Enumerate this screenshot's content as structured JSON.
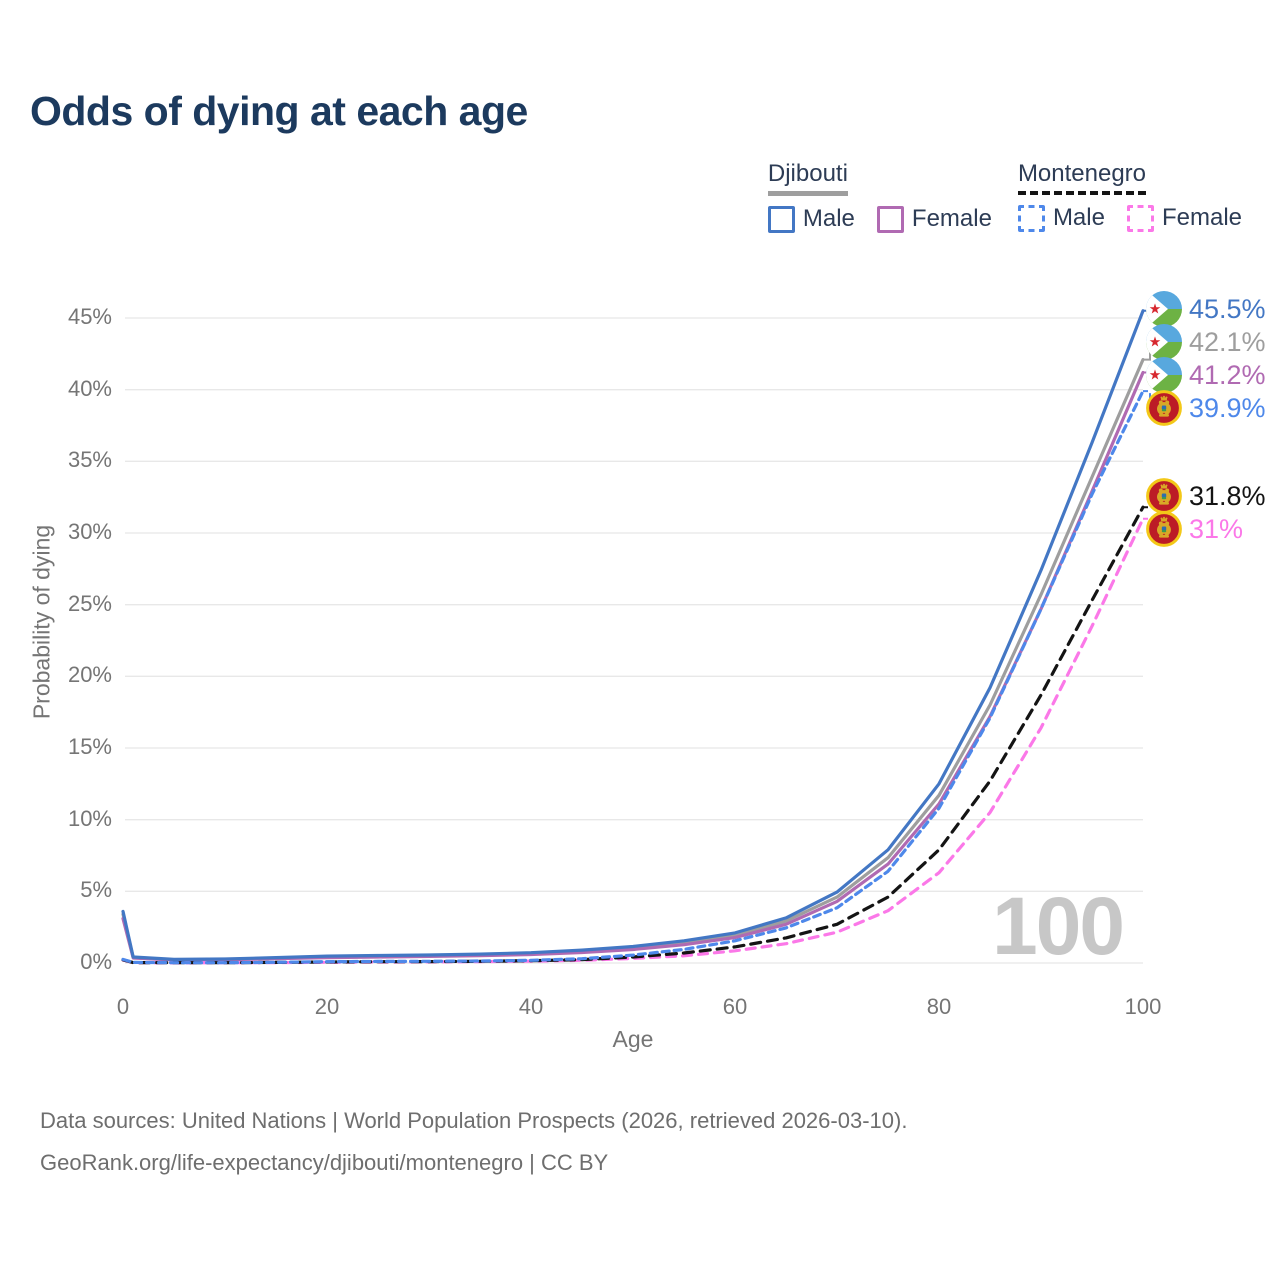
{
  "title": "Odds of dying at each age",
  "legend": {
    "groups": [
      {
        "label": "Djibouti",
        "line_style": "solid",
        "underline_color": "#9e9e9e",
        "items": [
          {
            "label": "Male",
            "color": "#4377c4",
            "dashed": false
          },
          {
            "label": "Female",
            "color": "#b06ab2",
            "dashed": false
          }
        ]
      },
      {
        "label": "Montenegro",
        "line_style": "dashed",
        "underline_color": "#141414",
        "items": [
          {
            "label": "Male",
            "color": "#4e88ea",
            "dashed": true
          },
          {
            "label": "Female",
            "color": "#fb78e8",
            "dashed": true
          }
        ]
      }
    ]
  },
  "chart_data": {
    "type": "line",
    "title": "Odds of dying at each age",
    "xlabel": "Age",
    "ylabel": "Probability of dying",
    "xlim": [
      0,
      100
    ],
    "ylim_pct": [
      0,
      47
    ],
    "grid": "horizontal",
    "x_ticks": [
      0,
      20,
      40,
      60,
      80,
      100
    ],
    "y_ticks_pct": [
      0,
      5,
      10,
      15,
      20,
      25,
      30,
      35,
      40,
      45
    ],
    "y_tick_suffix": "%",
    "legend_position": "top-right",
    "watermark_age_label": "100",
    "ages": [
      0,
      1,
      5,
      10,
      15,
      20,
      25,
      30,
      35,
      40,
      45,
      50,
      55,
      60,
      65,
      70,
      75,
      80,
      85,
      90,
      95,
      100
    ],
    "series": [
      {
        "name": "Djibouti Male",
        "country": "Djibouti",
        "sex": "Male",
        "color": "#4377c4",
        "dash": null,
        "flag": "djibouti",
        "end_label": "45.5%",
        "values_pct": [
          3.6,
          0.42,
          0.25,
          0.28,
          0.38,
          0.48,
          0.52,
          0.56,
          0.62,
          0.72,
          0.9,
          1.15,
          1.55,
          2.1,
          3.15,
          4.95,
          7.9,
          12.5,
          19.2,
          27.4,
          36.3,
          45.5
        ]
      },
      {
        "name": "Djibouti Both sexes",
        "country": "Djibouti",
        "sex": "Both",
        "color": "#9e9e9e",
        "dash": null,
        "flag": "djibouti",
        "end_label": "42.1%",
        "values_pct": [
          3.4,
          0.38,
          0.23,
          0.25,
          0.34,
          0.43,
          0.47,
          0.51,
          0.56,
          0.65,
          0.81,
          1.04,
          1.41,
          1.93,
          2.92,
          4.6,
          7.35,
          11.7,
          18.0,
          25.7,
          33.9,
          42.1
        ]
      },
      {
        "name": "Djibouti Female",
        "country": "Djibouti",
        "sex": "Female",
        "color": "#b06ab2",
        "dash": null,
        "flag": "djibouti",
        "end_label": "41.2%",
        "values_pct": [
          3.1,
          0.35,
          0.21,
          0.23,
          0.3,
          0.38,
          0.42,
          0.46,
          0.51,
          0.59,
          0.73,
          0.94,
          1.28,
          1.77,
          2.7,
          4.3,
          6.9,
          11.1,
          17.2,
          24.7,
          32.9,
          41.2
        ]
      },
      {
        "name": "Montenegro Male",
        "country": "Montenegro",
        "sex": "Male",
        "color": "#4e88ea",
        "dash": [
          7,
          5
        ],
        "flag": "montenegro",
        "end_label": "39.9%",
        "values_pct": [
          0.25,
          0.04,
          0.02,
          0.02,
          0.05,
          0.09,
          0.11,
          0.12,
          0.14,
          0.19,
          0.3,
          0.55,
          0.95,
          1.55,
          2.45,
          3.85,
          6.4,
          10.8,
          17.1,
          24.7,
          32.7,
          39.9
        ]
      },
      {
        "name": "Montenegro Both sexes",
        "country": "Montenegro",
        "sex": "Both",
        "color": "#141414",
        "dash": [
          10,
          7
        ],
        "flag": "montenegro",
        "end_label": "31.8%",
        "values_pct": [
          0.22,
          0.03,
          0.02,
          0.02,
          0.04,
          0.07,
          0.09,
          0.1,
          0.12,
          0.16,
          0.24,
          0.42,
          0.7,
          1.12,
          1.75,
          2.7,
          4.6,
          7.9,
          12.7,
          18.7,
          25.3,
          31.8
        ]
      },
      {
        "name": "Montenegro Female",
        "country": "Montenegro",
        "sex": "Female",
        "color": "#fb78e8",
        "dash": [
          9,
          7
        ],
        "flag": "montenegro",
        "end_label": "31%",
        "values_pct": [
          0.2,
          0.03,
          0.01,
          0.02,
          0.03,
          0.05,
          0.07,
          0.08,
          0.1,
          0.13,
          0.19,
          0.32,
          0.5,
          0.85,
          1.35,
          2.15,
          3.65,
          6.3,
          10.5,
          16.4,
          23.5,
          31.0
        ]
      }
    ],
    "flag_colors": {
      "djibouti": {
        "top": "#58a8de",
        "bottom": "#6db244",
        "triangle": "#ffffff",
        "star": "#d7282f"
      },
      "montenegro": {
        "field": "#bc1b26",
        "ring": "#f3c818",
        "emblem": "#d9a826",
        "shield_top": "#2e6fae",
        "shield_bottom": "#3f9b4f"
      }
    },
    "grid_color": "#e8e8e8"
  },
  "footer": {
    "line1": "Data sources: United Nations | World Population Prospects (2026, retrieved 2026-03-10).",
    "line2": "GeoRank.org/life-expectancy/djibouti/montenegro | CC BY"
  }
}
